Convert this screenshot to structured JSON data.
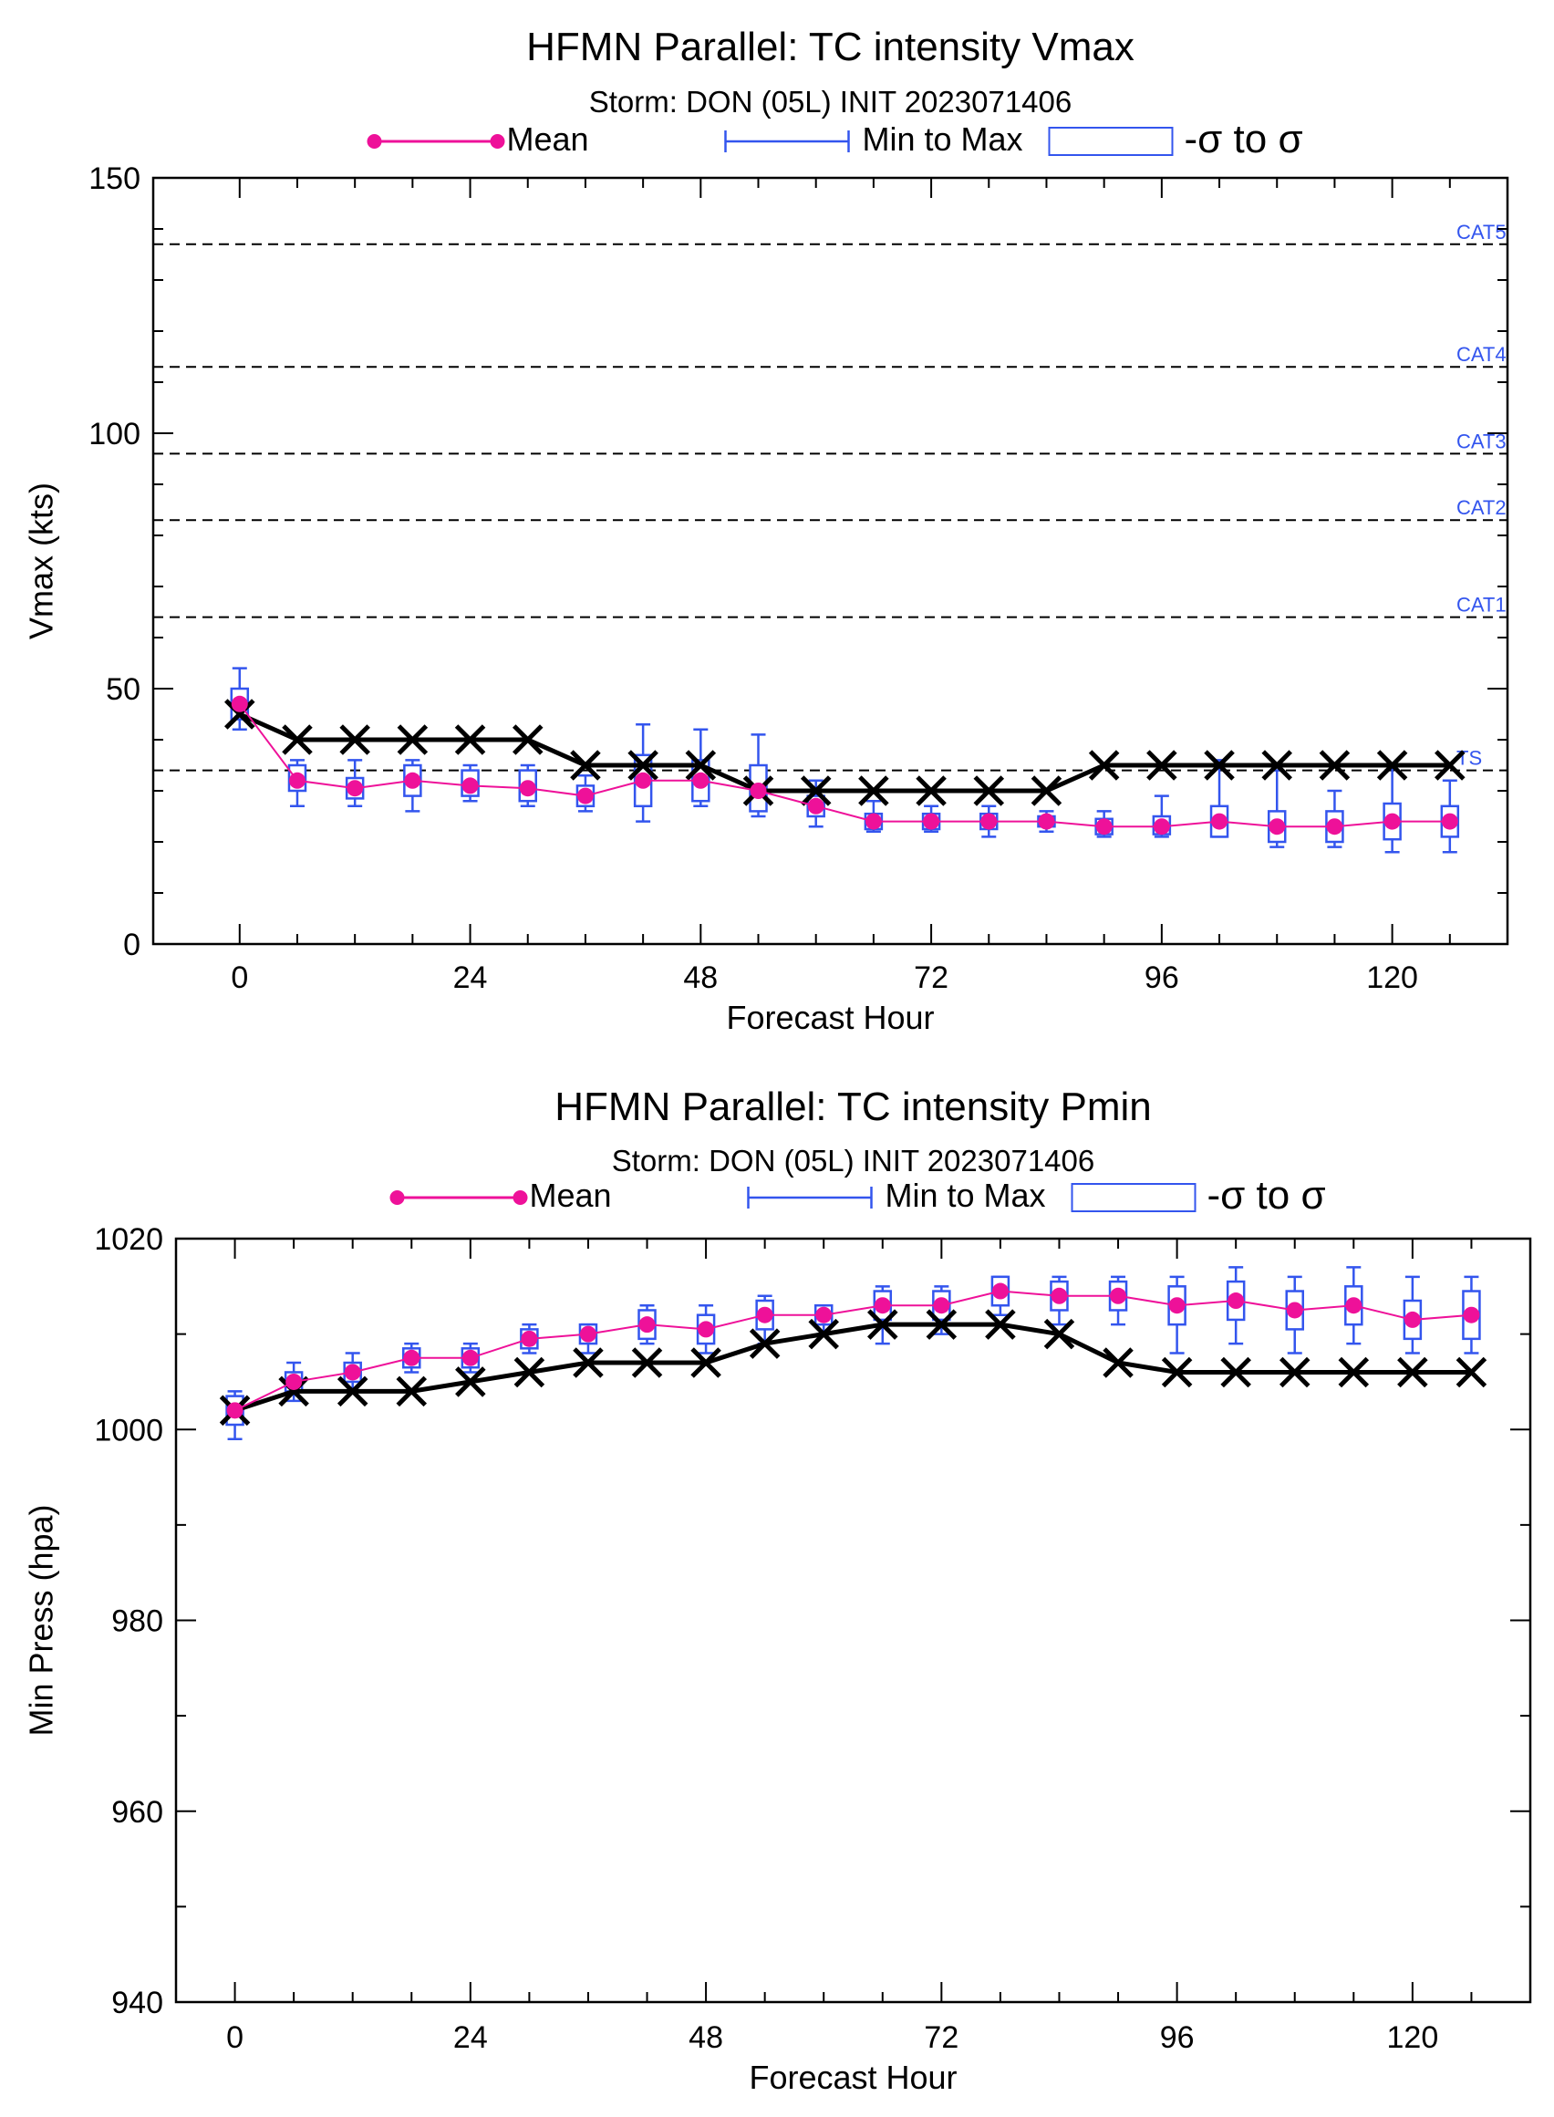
{
  "chart_data": [
    {
      "type": "line",
      "title": "HFMN Parallel: TC intensity Vmax",
      "subtitle": "Storm: DON (05L) INIT 2023071406",
      "xlabel": "Forecast Hour",
      "ylabel": "Vmax (kts)",
      "xlim": [
        -9,
        132
      ],
      "ylim": [
        0,
        150
      ],
      "x_ticks": [
        0,
        24,
        48,
        72,
        96,
        120
      ],
      "y_ticks": [
        0,
        50,
        100,
        150
      ],
      "legend": [
        "Mean",
        "Min to Max",
        "-σ to σ"
      ],
      "legend_position": "top",
      "grid": false,
      "colors": {
        "mean": "#ee1199",
        "spread": "#3355ee",
        "obs": "#000000",
        "ref": "#000000",
        "ref_label": "#3355ee"
      },
      "reference_lines": [
        {
          "label": "TS",
          "value": 34
        },
        {
          "label": "CAT1",
          "value": 64
        },
        {
          "label": "CAT2",
          "value": 83
        },
        {
          "label": "CAT3",
          "value": 96
        },
        {
          "label": "CAT4",
          "value": 113
        },
        {
          "label": "CAT5",
          "value": 137
        }
      ],
      "x": [
        0,
        6,
        12,
        18,
        24,
        30,
        36,
        42,
        48,
        54,
        60,
        66,
        72,
        78,
        84,
        90,
        96,
        102,
        108,
        114,
        120,
        126
      ],
      "series": [
        {
          "name": "Mean",
          "values": [
            47,
            32,
            30.5,
            32,
            31,
            30.5,
            29,
            32,
            32,
            30,
            27,
            24,
            24,
            24,
            24,
            23,
            23,
            24,
            23,
            23,
            24,
            24
          ]
        },
        {
          "name": "Min to Max",
          "min": [
            42,
            27,
            27,
            26,
            28,
            27,
            26,
            24,
            27,
            25,
            23,
            22,
            22,
            21,
            22,
            21,
            21,
            21,
            19,
            19,
            18,
            18
          ],
          "max": [
            54,
            36,
            36,
            36,
            35,
            35,
            33,
            43,
            42,
            41,
            32,
            28,
            27,
            27,
            26,
            26,
            29,
            36,
            34,
            30,
            35,
            32
          ]
        },
        {
          "name": "-σ to σ",
          "low": [
            44,
            30,
            28.5,
            29,
            29,
            28,
            27,
            27,
            28,
            26,
            25,
            22.5,
            22.5,
            22.5,
            23,
            21.5,
            21.5,
            21,
            20,
            20,
            20.5,
            21
          ],
          "high": [
            50,
            35,
            32.5,
            35,
            34,
            34,
            31,
            37,
            36,
            35,
            29,
            25.5,
            25.5,
            25.5,
            25,
            24.5,
            25,
            27,
            26,
            26,
            27.5,
            27
          ]
        },
        {
          "name": "",
          "values": [
            45,
            40,
            40,
            40,
            40,
            40,
            35,
            35,
            35,
            30,
            30,
            30,
            30,
            30,
            30,
            35,
            35,
            35,
            35,
            35,
            35,
            35
          ]
        }
      ]
    },
    {
      "type": "line",
      "title": "HFMN Parallel: TC intensity Pmin",
      "subtitle": "Storm: DON (05L) INIT 2023071406",
      "xlabel": "Forecast Hour",
      "ylabel": "Min Press (hpa)",
      "xlim": [
        -6,
        132
      ],
      "ylim": [
        940,
        1020
      ],
      "x_ticks": [
        0,
        24,
        48,
        72,
        96,
        120
      ],
      "y_ticks": [
        940,
        960,
        980,
        1000,
        1020
      ],
      "legend": [
        "Mean",
        "Min to Max",
        "-σ to σ"
      ],
      "legend_position": "top",
      "grid": false,
      "colors": {
        "mean": "#ee1199",
        "spread": "#3355ee",
        "obs": "#000000"
      },
      "x": [
        0,
        6,
        12,
        18,
        24,
        30,
        36,
        42,
        48,
        54,
        60,
        66,
        72,
        78,
        84,
        90,
        96,
        102,
        108,
        114,
        120,
        126
      ],
      "series": [
        {
          "name": "Mean",
          "values": [
            1002,
            1005,
            1006,
            1007.5,
            1007.5,
            1009.5,
            1010,
            1011,
            1010.5,
            1012,
            1012,
            1013,
            1013,
            1014.5,
            1014,
            1014,
            1013,
            1013.5,
            1012.5,
            1013,
            1011.5,
            1012
          ]
        },
        {
          "name": "Min to Max",
          "min": [
            999,
            1003,
            1004,
            1006,
            1006,
            1008,
            1008,
            1009,
            1008,
            1009,
            1010,
            1009,
            1010,
            1012,
            1011,
            1011,
            1008,
            1009,
            1008,
            1009,
            1008,
            1008
          ]
        },
        {
          "name": "Min to Max",
          "max": [
            1004,
            1007,
            1008,
            1009,
            1009,
            1011,
            1011,
            1013,
            1013,
            1014,
            1013,
            1015,
            1015,
            1016,
            1016,
            1016,
            1016,
            1017,
            1016,
            1017,
            1016,
            1016
          ]
        },
        {
          "name": "-σ to σ",
          "low": [
            1000.5,
            1004,
            1005,
            1006.5,
            1006.5,
            1008.5,
            1009,
            1009.5,
            1009,
            1010.5,
            1011,
            1011.5,
            1011.5,
            1013,
            1012.5,
            1012.5,
            1011,
            1011.5,
            1010.5,
            1011,
            1009.5,
            1009.5
          ]
        },
        {
          "name": "-σ to σ",
          "high": [
            1003.5,
            1006,
            1007,
            1008.5,
            1008.5,
            1010.5,
            1011,
            1012.5,
            1012,
            1013.5,
            1013,
            1014.5,
            1014.5,
            1016,
            1015.5,
            1015.5,
            1015,
            1015.5,
            1014.5,
            1015,
            1013.5,
            1014.5
          ]
        },
        {
          "name": "",
          "values": [
            1002,
            1004,
            1004,
            1004,
            1005,
            1006,
            1007,
            1007,
            1007,
            1009,
            1010,
            1011,
            1011,
            1011,
            1010,
            1007,
            1006,
            1006,
            1006,
            1006,
            1006,
            1006
          ]
        }
      ]
    }
  ]
}
